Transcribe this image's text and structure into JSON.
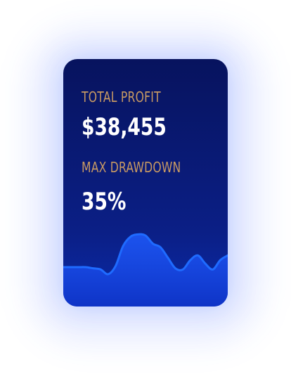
{
  "card": {
    "total_profit_label": "TOTAL PROFIT",
    "total_profit_value": "$38,455",
    "max_drawdown_label": "MAX DRAWDOWN",
    "max_drawdown_value": "35%"
  },
  "colors": {
    "card_top": "#07135e",
    "card_bottom": "#0a2aa8",
    "label_gold": "#c99a63",
    "value_white": "#ffffff",
    "chart_line": "#1f6bff"
  },
  "sparkline": {
    "type": "area",
    "values": [
      30,
      30,
      30,
      30,
      29,
      28,
      24,
      31,
      48,
      56,
      58,
      57,
      50,
      47,
      38,
      29,
      28,
      36,
      40,
      33,
      28,
      36,
      40
    ]
  }
}
